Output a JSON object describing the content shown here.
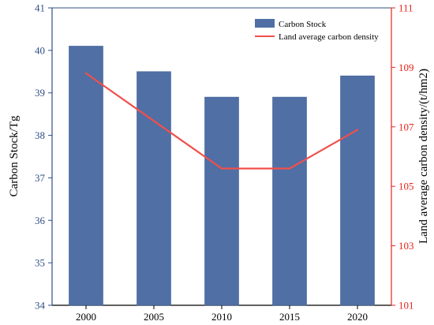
{
  "chart_data": {
    "type": "bar",
    "categories": [
      "2000",
      "2005",
      "2010",
      "2015",
      "2020"
    ],
    "series": [
      {
        "name": "Carbon Stock",
        "type": "bar",
        "axis": "left",
        "values": [
          40.1,
          39.5,
          38.9,
          38.9,
          39.4
        ],
        "color": "#4f6fa5"
      },
      {
        "name": "Land average carbon density",
        "type": "line",
        "axis": "right",
        "values": [
          108.8,
          107.2,
          105.6,
          105.6,
          106.9
        ],
        "color": "#f0504b"
      }
    ],
    "ylabel_left": "Carbon Stock/Tg",
    "ylabel_right": "Land average carbon density/(t/hm2)",
    "ylim_left": [
      34,
      41
    ],
    "ylim_right": [
      101,
      111
    ],
    "yticks_left": [
      "34",
      "35",
      "36",
      "37",
      "38",
      "39",
      "40",
      "41"
    ],
    "yticks_right": [
      "101",
      "103",
      "105",
      "107",
      "109",
      "111"
    ],
    "left_axis_color": "#2f4f86",
    "right_axis_color": "#e8231d",
    "grid": false,
    "legend_position": "top-right"
  }
}
